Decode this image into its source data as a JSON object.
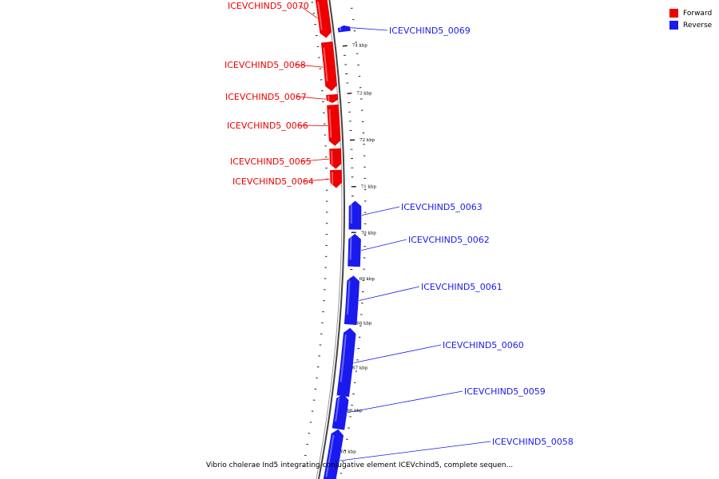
{
  "legend": {
    "forward_label": "Forward",
    "reverse_label": "Reverse",
    "forward_color": "#ee0000",
    "reverse_color": "#1a1aee"
  },
  "caption": "Vibrio cholerae Ind5 integrating conjugative element ICEVchind5, complete sequen...",
  "axis": {
    "unit": "kbp",
    "ticks": [
      {
        "label": "74 kbp"
      },
      {
        "label": "73 kbp"
      },
      {
        "label": "72 kbp"
      },
      {
        "label": "71 kbp"
      },
      {
        "label": "70 kbp"
      },
      {
        "label": "69 kbp"
      },
      {
        "label": "68 kbp"
      },
      {
        "label": "67 kbp"
      },
      {
        "label": "66 kbp"
      },
      {
        "label": "65 kbp"
      }
    ]
  },
  "genes": [
    {
      "name": "ICEVCHIND5_0070",
      "strand": "forward"
    },
    {
      "name": "ICEVCHIND5_0069",
      "strand": "reverse"
    },
    {
      "name": "ICEVCHIND5_0068",
      "strand": "forward"
    },
    {
      "name": "ICEVCHIND5_0067",
      "strand": "forward"
    },
    {
      "name": "ICEVCHIND5_0066",
      "strand": "forward"
    },
    {
      "name": "ICEVCHIND5_0065",
      "strand": "forward"
    },
    {
      "name": "ICEVCHIND5_0064",
      "strand": "forward"
    },
    {
      "name": "ICEVCHIND5_0063",
      "strand": "reverse"
    },
    {
      "name": "ICEVCHIND5_0062",
      "strand": "reverse"
    },
    {
      "name": "ICEVCHIND5_0061",
      "strand": "reverse"
    },
    {
      "name": "ICEVCHIND5_0060",
      "strand": "reverse"
    },
    {
      "name": "ICEVCHIND5_0059",
      "strand": "reverse"
    },
    {
      "name": "ICEVCHIND5_0058",
      "strand": "reverse"
    }
  ]
}
